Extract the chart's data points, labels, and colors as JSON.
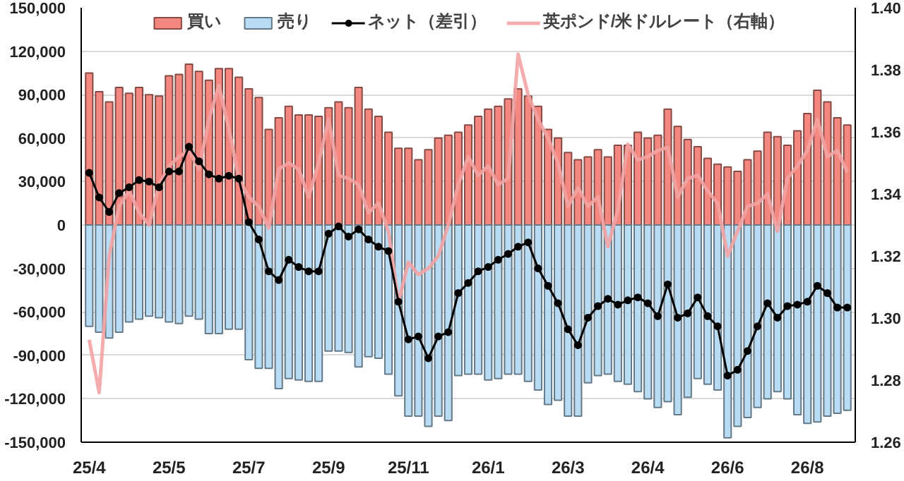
{
  "chart_data": {
    "type": "bar",
    "stacked": true,
    "categories": [
      "25/4",
      null,
      null,
      null,
      null,
      null,
      null,
      null,
      "25/5",
      null,
      null,
      null,
      null,
      null,
      null,
      null,
      "25/7",
      null,
      null,
      null,
      null,
      null,
      null,
      null,
      "25/9",
      null,
      null,
      null,
      null,
      null,
      null,
      null,
      "25/11",
      null,
      null,
      null,
      null,
      null,
      null,
      null,
      "26/1",
      null,
      null,
      null,
      null,
      null,
      null,
      null,
      "26/3",
      null,
      null,
      null,
      null,
      null,
      null,
      null,
      "26/4",
      null,
      null,
      null,
      null,
      null,
      null,
      null,
      "26/6",
      null,
      null,
      null,
      null,
      null,
      null,
      null,
      "26/8",
      null,
      null,
      null,
      null
    ],
    "series": [
      {
        "name": "買い",
        "color": "#f4877f",
        "values": [
          105000,
          92000,
          85000,
          95000,
          91000,
          95000,
          90000,
          89000,
          103000,
          104000,
          111000,
          106000,
          100000,
          108000,
          108000,
          102000,
          94000,
          88000,
          66000,
          74000,
          82000,
          76000,
          76000,
          75000,
          81000,
          85000,
          81000,
          95000,
          80000,
          75000,
          64000,
          53000,
          53000,
          45000,
          52000,
          60000,
          62000,
          64000,
          69000,
          75000,
          80000,
          82000,
          87000,
          94000,
          89000,
          82000,
          66000,
          60000,
          50000,
          45000,
          47000,
          52000,
          47000,
          55000,
          55000,
          64000,
          60000,
          62000,
          80000,
          68000,
          59000,
          54000,
          46000,
          42000,
          40000,
          37000,
          45000,
          51000,
          64000,
          61000,
          55000,
          65000,
          77000,
          93000,
          85000,
          74000,
          69000
        ]
      },
      {
        "name": "売り",
        "color": "#b9dcf5",
        "values": [
          -70000,
          -74000,
          -78000,
          -74000,
          -67000,
          -65000,
          -63000,
          -64000,
          -67000,
          -68000,
          -63000,
          -65000,
          -75000,
          -75000,
          -72000,
          -72000,
          -93000,
          -99000,
          -99000,
          -113000,
          -106000,
          -107000,
          -108000,
          -108000,
          -87000,
          -87000,
          -88000,
          -98000,
          -91000,
          -92000,
          -103000,
          -118000,
          -132000,
          -132000,
          -139000,
          -132000,
          -135000,
          -104000,
          -103000,
          -103000,
          -107000,
          -106000,
          -103000,
          -103000,
          -108000,
          -114000,
          -124000,
          -121000,
          -132000,
          -132000,
          -109000,
          -104000,
          -103000,
          -108000,
          -110000,
          -115000,
          -120000,
          -126000,
          -122000,
          -131000,
          -119000,
          -106000,
          -110000,
          -114000,
          -147000,
          -139000,
          -133000,
          -126000,
          -120000,
          -115000,
          -120000,
          -131000,
          -137000,
          -136000,
          -132000,
          -130000,
          -128000
        ]
      },
      {
        "name": "ネット（差引）",
        "type": "line",
        "color": "#000000",
        "marker": "circle",
        "values": [
          36000,
          19000,
          9000,
          22000,
          26000,
          31000,
          30000,
          26000,
          37000,
          37000,
          54000,
          44000,
          35000,
          32000,
          34000,
          32000,
          2000,
          -10000,
          -32000,
          -38000,
          -24000,
          -29000,
          -32000,
          -32000,
          -6000,
          -1000,
          -8000,
          -3000,
          -10000,
          -15000,
          -18000,
          -53000,
          -79000,
          -77000,
          -92000,
          -77000,
          -74000,
          -47000,
          -40000,
          -32000,
          -29000,
          -24000,
          -20000,
          -15000,
          -12000,
          -30000,
          -42000,
          -54000,
          -72000,
          -83000,
          -64000,
          -56000,
          -51000,
          -55000,
          -52000,
          -50000,
          -54000,
          -63000,
          -41000,
          -64000,
          -61000,
          -50000,
          -63000,
          -70000,
          -104000,
          -100000,
          -87000,
          -70000,
          -54000,
          -64000,
          -56000,
          -55000,
          -53000,
          -42000,
          -47000,
          -57000,
          -57000
        ]
      },
      {
        "name": "英ポンド/米ドルレート（右軸）",
        "type": "line",
        "axis": "y2",
        "color": "#f3a3a3",
        "marker": "none",
        "values": [
          1.293,
          1.276,
          1.32,
          1.336,
          1.341,
          1.334,
          1.33,
          1.343,
          1.349,
          1.352,
          1.354,
          1.348,
          1.364,
          1.375,
          1.361,
          1.345,
          1.339,
          1.336,
          1.329,
          1.348,
          1.35,
          1.348,
          1.339,
          1.35,
          1.364,
          1.346,
          1.345,
          1.343,
          1.334,
          1.337,
          1.328,
          1.305,
          1.318,
          1.314,
          1.316,
          1.32,
          1.33,
          1.343,
          1.352,
          1.346,
          1.349,
          1.343,
          1.345,
          1.385,
          1.372,
          1.364,
          1.358,
          1.35,
          1.336,
          1.342,
          1.336,
          1.339,
          1.323,
          1.335,
          1.356,
          1.351,
          1.352,
          1.354,
          1.355,
          1.339,
          1.345,
          1.346,
          1.341,
          1.337,
          1.32,
          1.328,
          1.336,
          1.337,
          1.34,
          1.328,
          1.345,
          1.349,
          1.354,
          1.364,
          1.352,
          1.354,
          1.347
        ]
      }
    ],
    "ylim": [
      -150000,
      150000
    ],
    "yticks": [
      {
        "value": -150000,
        "label": "-150,000"
      },
      {
        "value": -120000,
        "label": "-120,000"
      },
      {
        "value": -90000,
        "label": "-90,000"
      },
      {
        "value": -60000,
        "label": "-60,000"
      },
      {
        "value": -30000,
        "label": "-30,000"
      },
      {
        "value": 0,
        "label": "0"
      },
      {
        "value": 30000,
        "label": "30,000"
      },
      {
        "value": 60000,
        "label": "60,000"
      },
      {
        "value": 90000,
        "label": "90,000"
      },
      {
        "value": 120000,
        "label": "120,000"
      },
      {
        "value": 150000,
        "label": "150,000"
      }
    ],
    "y2lim": [
      1.26,
      1.4
    ],
    "y2ticks": [
      {
        "value": 1.26,
        "label": "1.26"
      },
      {
        "value": 1.28,
        "label": "1.28"
      },
      {
        "value": 1.3,
        "label": "1.30"
      },
      {
        "value": 1.32,
        "label": "1.32"
      },
      {
        "value": 1.34,
        "label": "1.34"
      },
      {
        "value": 1.36,
        "label": "1.36"
      },
      {
        "value": 1.38,
        "label": "1.38"
      },
      {
        "value": 1.4,
        "label": "1.40"
      }
    ],
    "grid": "y",
    "legend": "top"
  }
}
